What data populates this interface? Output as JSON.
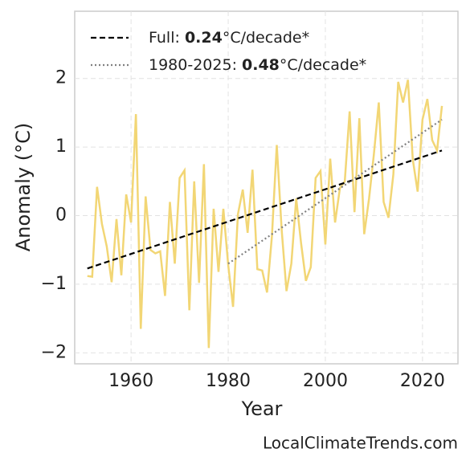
{
  "chart_data": {
    "type": "line",
    "xlabel": "Year",
    "ylabel": "Anomaly (°C)",
    "watermark": "LocalClimateTrends.com",
    "xlim": [
      1948.4,
      2027.3
    ],
    "ylim": [
      -2.16,
      2.98
    ],
    "xticks": [
      1960,
      1980,
      2000,
      2020
    ],
    "yticks": [
      {
        "value": -2,
        "label": "−2"
      },
      {
        "value": -1,
        "label": "−1"
      },
      0,
      1,
      2
    ],
    "grid": true,
    "legend": "upper left",
    "series": [
      {
        "color": "#f2d675",
        "style": "solid",
        "x": [
          1951,
          1952,
          1953,
          1954,
          1955,
          1956,
          1957,
          1958,
          1959,
          1960,
          1961,
          1962,
          1963,
          1964,
          1965,
          1966,
          1967,
          1968,
          1969,
          1970,
          1971,
          1972,
          1973,
          1974,
          1975,
          1976,
          1977,
          1978,
          1979,
          1980,
          1981,
          1982,
          1983,
          1984,
          1985,
          1986,
          1987,
          1988,
          1989,
          1990,
          1991,
          1992,
          1993,
          1994,
          1995,
          1996,
          1997,
          1998,
          1999,
          2000,
          2001,
          2002,
          2003,
          2004,
          2005,
          2006,
          2007,
          2008,
          2009,
          2010,
          2011,
          2012,
          2013,
          2014,
          2015,
          2016,
          2017,
          2018,
          2019,
          2020,
          2021,
          2022,
          2023,
          2024
        ],
        "values": [
          -0.88,
          -0.89,
          0.42,
          -0.12,
          -0.45,
          -0.97,
          -0.05,
          -0.87,
          0.31,
          -0.1,
          1.48,
          -1.65,
          0.28,
          -0.5,
          -0.55,
          -0.52,
          -1.17,
          0.2,
          -0.7,
          0.55,
          0.66,
          -1.38,
          0.5,
          -0.98,
          0.75,
          -1.93,
          0.1,
          -0.82,
          0.1,
          -0.72,
          -1.33,
          0.02,
          0.38,
          -0.25,
          0.67,
          -0.78,
          -0.8,
          -1.12,
          -0.3,
          1.03,
          -0.2,
          -1.1,
          -0.7,
          0.25,
          -0.4,
          -0.95,
          -0.75,
          0.55,
          0.65,
          -0.42,
          0.83,
          -0.1,
          0.4,
          0.5,
          1.52,
          0.05,
          1.42,
          -0.27,
          0.25,
          0.9,
          1.65,
          0.2,
          -0.03,
          0.6,
          1.95,
          1.65,
          1.98,
          0.82,
          0.35,
          1.4,
          1.7,
          1.1,
          0.95,
          1.6
        ]
      },
      {
        "name": [
          "Full: ",
          "0.24",
          "°C/decade*"
        ],
        "color": "#000000",
        "style": "dashed",
        "x": [
          1951,
          2024
        ],
        "values": [
          -0.77,
          0.95
        ]
      },
      {
        "name": [
          "1980-2025: ",
          "0.48",
          "°C/decade*"
        ],
        "color": "#808080",
        "style": "dotted",
        "x": [
          1980,
          2024
        ],
        "values": [
          -0.7,
          1.4
        ]
      }
    ]
  }
}
